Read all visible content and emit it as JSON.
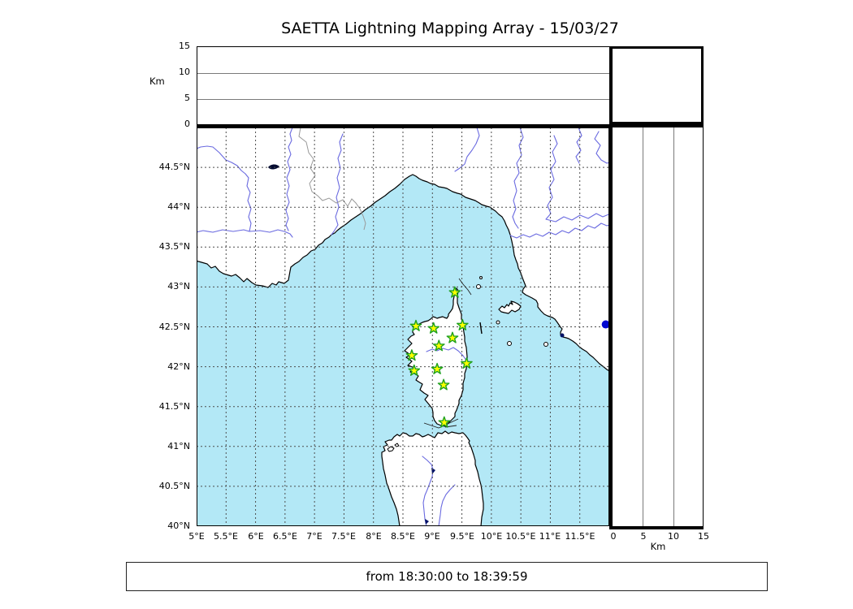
{
  "title": "SAETTA Lightning Mapping Array - 15/03/27",
  "status_bar": {
    "text": "from 18:30:00 to 18:39:59"
  },
  "map_extent": {
    "lon_min": 5,
    "lon_max": 12,
    "lat_min": 40,
    "lat_max": 45,
    "grid_step_deg": 0.5
  },
  "altitude_axis": {
    "min_km": 0,
    "max_km": 15,
    "grid_lines_km": [
      5,
      10
    ],
    "unit": "Km"
  },
  "axes": {
    "lon_ticks": [
      {
        "label": "5°E",
        "lon": 5
      },
      {
        "label": "5.5°E",
        "lon": 5.5
      },
      {
        "label": "6°E",
        "lon": 6
      },
      {
        "label": "6.5°E",
        "lon": 6.5
      },
      {
        "label": "7°E",
        "lon": 7
      },
      {
        "label": "7.5°E",
        "lon": 7.5
      },
      {
        "label": "8°E",
        "lon": 8
      },
      {
        "label": "8.5°E",
        "lon": 8.5
      },
      {
        "label": "9°E",
        "lon": 9
      },
      {
        "label": "9.5°E",
        "lon": 9.5
      },
      {
        "label": "10°E",
        "lon": 10
      },
      {
        "label": "10.5°E",
        "lon": 10.5
      },
      {
        "label": "11°E",
        "lon": 11
      },
      {
        "label": "11.5°E",
        "lon": 11.5
      }
    ],
    "lat_ticks": [
      {
        "label": "44.5°N",
        "lat": 44.5
      },
      {
        "label": "44°N",
        "lat": 44
      },
      {
        "label": "43.5°N",
        "lat": 43.5
      },
      {
        "label": "43°N",
        "lat": 43
      },
      {
        "label": "42.5°N",
        "lat": 42.5
      },
      {
        "label": "42°N",
        "lat": 42
      },
      {
        "label": "41.5°N",
        "lat": 41.5
      },
      {
        "label": "41°N",
        "lat": 41
      },
      {
        "label": "40.5°N",
        "lat": 40.5
      },
      {
        "label": "40°N",
        "lat": 40
      }
    ],
    "altitude_ticks": [
      {
        "label": "0",
        "km": 0
      },
      {
        "label": "5",
        "km": 5
      },
      {
        "label": "10",
        "km": 10
      },
      {
        "label": "15",
        "km": 15
      }
    ],
    "altitude_unit_label": "Km",
    "distance_unit_label": "Km"
  },
  "stations": [
    {
      "lon": 9.38,
      "lat": 42.93
    },
    {
      "lon": 8.72,
      "lat": 42.51
    },
    {
      "lon": 9.02,
      "lat": 42.48
    },
    {
      "lon": 9.51,
      "lat": 42.52
    },
    {
      "lon": 9.34,
      "lat": 42.36
    },
    {
      "lon": 9.11,
      "lat": 42.26
    },
    {
      "lon": 8.65,
      "lat": 42.14
    },
    {
      "lon": 9.58,
      "lat": 42.04
    },
    {
      "lon": 8.69,
      "lat": 41.95
    },
    {
      "lon": 9.08,
      "lat": 41.97
    },
    {
      "lon": 9.19,
      "lat": 41.77
    },
    {
      "lon": 9.2,
      "lat": 41.3
    }
  ],
  "event_marker": {
    "lon": 11.94,
    "lat": 42.53
  },
  "colors": {
    "sea": "#b3e8f6",
    "land": "#ffffff",
    "coast": "#000000",
    "river": "#6a6ae0",
    "admin_border": "#999999",
    "grid": "#4d4d4d",
    "station_fill": "#ffff00",
    "station_edge": "#1fa11f",
    "event_dot": "#0008d0",
    "lake": "#001166"
  }
}
